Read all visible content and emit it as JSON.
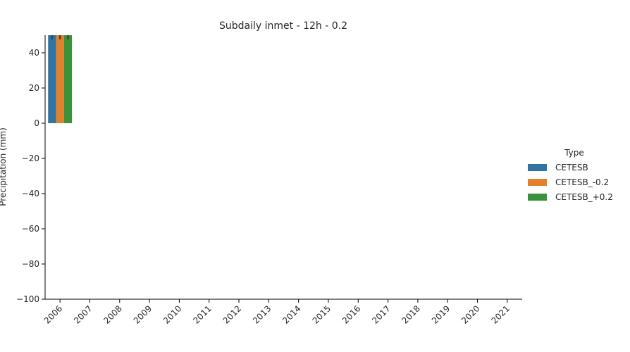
{
  "chart_data": {
    "type": "bar",
    "title": "Subdaily inmet - 12h - 0.2",
    "xlabel": "",
    "ylabel": "Precipitation (mm)",
    "ylim": [
      -100,
      50
    ],
    "yticks": [
      -100,
      -80,
      -60,
      -40,
      -20,
      0,
      20,
      40
    ],
    "categories": [
      "2006",
      "2007",
      "2008",
      "2009",
      "2010",
      "2011",
      "2012",
      "2013",
      "2014",
      "2015",
      "2016",
      "2017",
      "2018",
      "2019",
      "2020",
      "2021"
    ],
    "legend": {
      "title": "Type",
      "position": "right"
    },
    "grid": false,
    "series": [
      {
        "name": "CETESB",
        "color": "#3274a1",
        "values": [
          52,
          null,
          null,
          null,
          null,
          null,
          null,
          null,
          null,
          null,
          null,
          null,
          null,
          null,
          null,
          null
        ]
      },
      {
        "name": "CETESB_-0.2",
        "color": "#e1812c",
        "values": [
          52,
          null,
          null,
          null,
          null,
          null,
          null,
          null,
          null,
          null,
          null,
          null,
          null,
          null,
          null,
          null
        ]
      },
      {
        "name": "CETESB_+0.2",
        "color": "#3a923a",
        "values": [
          52,
          null,
          null,
          null,
          null,
          null,
          null,
          null,
          null,
          null,
          null,
          null,
          null,
          null,
          null,
          null
        ]
      }
    ]
  }
}
